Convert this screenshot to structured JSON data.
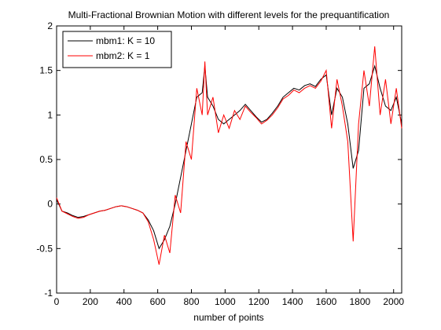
{
  "chart_data": {
    "type": "line",
    "title": "Multi-Fractional Brownian Motion with different levels for the prequantification",
    "x_label": "number of points",
    "x": [
      0,
      32,
      64,
      96,
      128,
      160,
      192,
      224,
      256,
      288,
      320,
      352,
      384,
      416,
      448,
      480,
      512,
      544,
      576,
      608,
      640,
      672,
      704,
      736,
      768,
      800,
      832,
      864,
      880,
      896,
      928,
      960,
      992,
      1024,
      1056,
      1088,
      1120,
      1152,
      1184,
      1216,
      1248,
      1280,
      1312,
      1344,
      1376,
      1408,
      1440,
      1472,
      1504,
      1536,
      1568,
      1600,
      1632,
      1664,
      1696,
      1728,
      1760,
      1792,
      1824,
      1856,
      1888,
      1920,
      1952,
      1984,
      2016,
      2048
    ],
    "series": [
      {
        "name": "mbm1: K = 10",
        "color": "#000000",
        "values": [
          0.05,
          -0.08,
          -0.1,
          -0.13,
          -0.15,
          -0.14,
          -0.12,
          -0.1,
          -0.08,
          -0.07,
          -0.05,
          -0.03,
          -0.02,
          -0.03,
          -0.05,
          -0.07,
          -0.1,
          -0.18,
          -0.3,
          -0.5,
          -0.4,
          -0.25,
          0.0,
          0.3,
          0.6,
          0.9,
          1.2,
          1.25,
          1.55,
          1.2,
          1.1,
          0.95,
          0.9,
          0.95,
          1.0,
          1.05,
          1.12,
          1.05,
          0.98,
          0.92,
          0.95,
          1.02,
          1.1,
          1.2,
          1.25,
          1.3,
          1.28,
          1.33,
          1.35,
          1.32,
          1.4,
          1.45,
          1.0,
          1.3,
          1.2,
          0.9,
          0.4,
          0.6,
          1.3,
          1.35,
          1.55,
          1.3,
          1.1,
          1.05,
          1.2,
          0.9
        ]
      },
      {
        "name": "mbm2: K = 1",
        "color": "#ff0000",
        "values": [
          0.07,
          -0.08,
          -0.11,
          -0.14,
          -0.16,
          -0.15,
          -0.12,
          -0.1,
          -0.08,
          -0.07,
          -0.05,
          -0.03,
          -0.02,
          -0.03,
          -0.05,
          -0.07,
          -0.1,
          -0.2,
          -0.4,
          -0.68,
          -0.35,
          -0.55,
          0.1,
          -0.1,
          0.7,
          0.5,
          1.3,
          1.0,
          1.6,
          1.0,
          1.2,
          0.8,
          1.0,
          0.85,
          1.05,
          0.95,
          1.1,
          1.03,
          0.97,
          0.9,
          0.94,
          1.0,
          1.08,
          1.18,
          1.22,
          1.28,
          1.25,
          1.3,
          1.33,
          1.3,
          1.38,
          1.5,
          0.85,
          1.4,
          1.1,
          0.7,
          -0.42,
          0.9,
          1.5,
          1.1,
          1.77,
          1.0,
          1.4,
          0.9,
          1.3,
          0.85
        ]
      }
    ],
    "xlim": [
      0,
      2048
    ],
    "ylim": [
      -1,
      2
    ],
    "xticks": [
      0,
      200,
      400,
      600,
      800,
      1000,
      1200,
      1400,
      1600,
      1800,
      2000
    ],
    "yticks": [
      -1,
      -0.5,
      0,
      0.5,
      1,
      1.5,
      2
    ],
    "grid": false,
    "legend": "upper left"
  }
}
